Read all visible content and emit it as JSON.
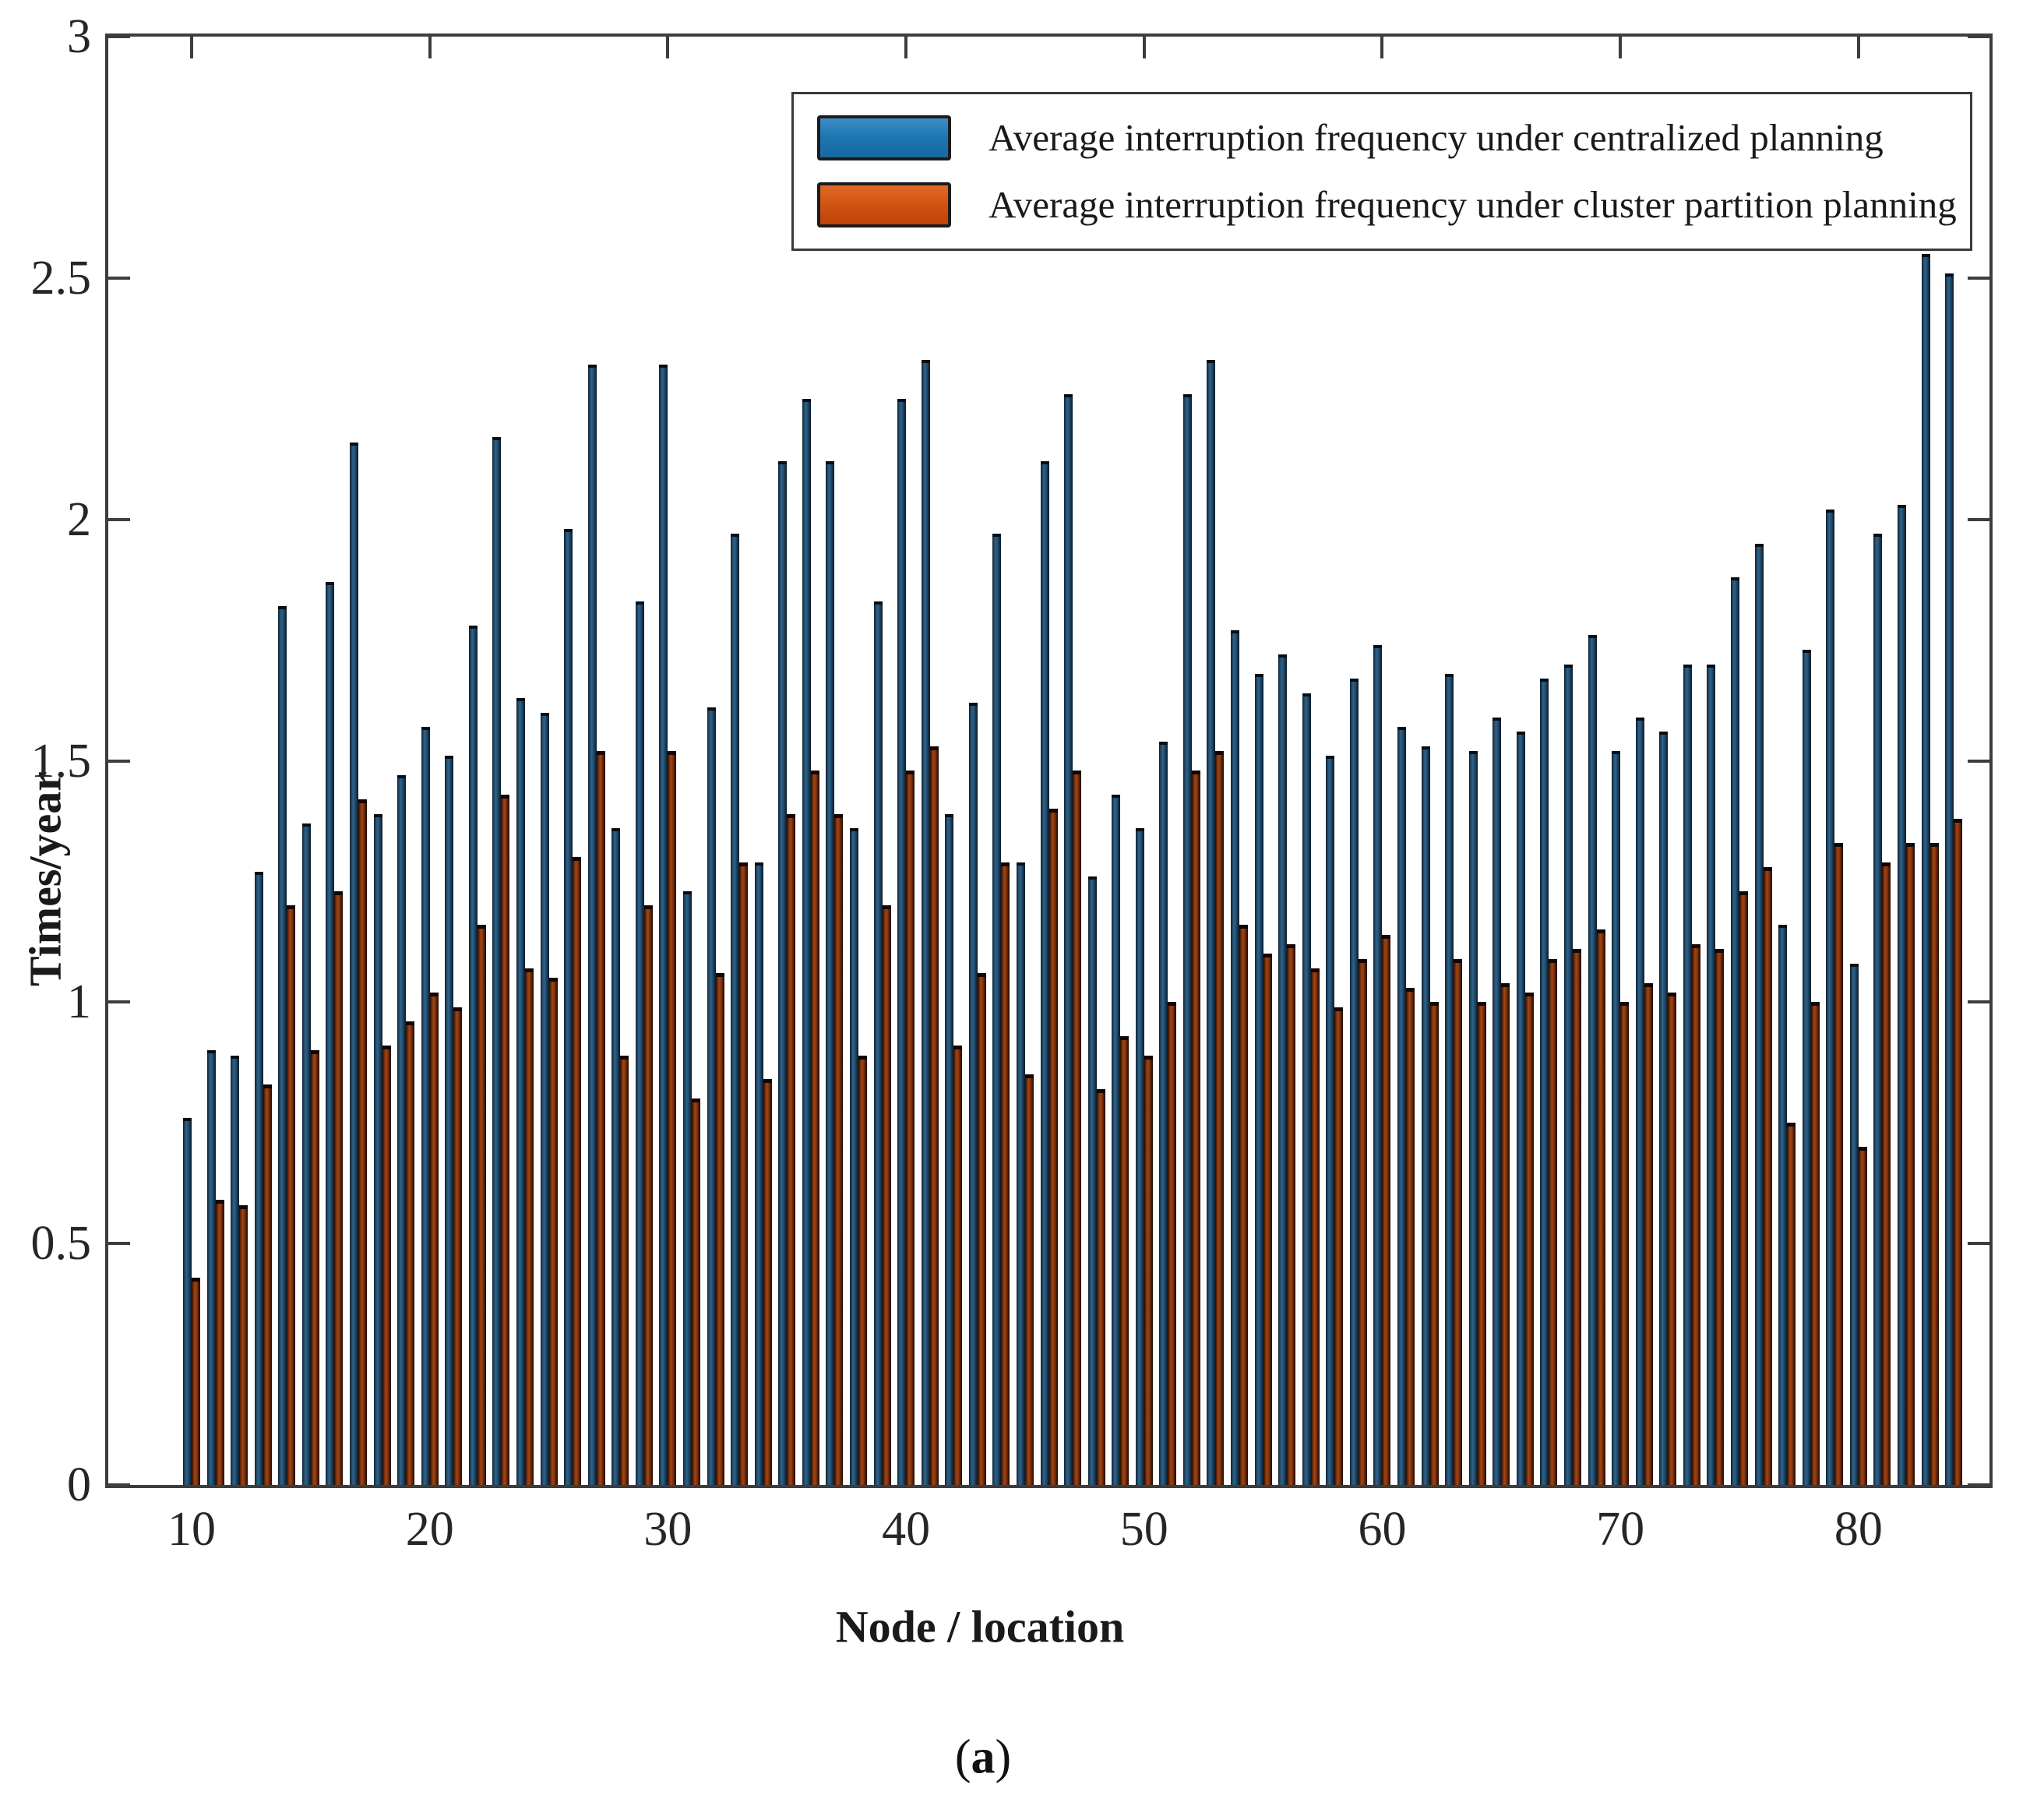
{
  "figure": {
    "ylabel": "Times/year",
    "xlabel": "Node / location",
    "caption": {
      "open": "(",
      "letter": "a",
      "close": ")"
    },
    "background": "#ffffff",
    "axis_color": "#3d3d3d",
    "tick_label_color": "#262626"
  },
  "chart_data": {
    "type": "bar",
    "title": "",
    "xlabel": "Node / location",
    "ylabel": "Times/year",
    "xlim": [
      6.5,
      85.5
    ],
    "ylim": [
      0,
      3
    ],
    "xticks": [
      10,
      20,
      30,
      40,
      50,
      60,
      70,
      80
    ],
    "yticks": [
      0,
      0.5,
      1,
      1.5,
      2,
      2.5,
      3
    ],
    "grid": false,
    "legend_position": "upper center inside",
    "bar_layout": "grouped-pairs",
    "categories": [
      10,
      11,
      12,
      13,
      14,
      15,
      16,
      17,
      18,
      19,
      20,
      21,
      22,
      23,
      24,
      25,
      26,
      27,
      28,
      29,
      30,
      31,
      32,
      33,
      34,
      35,
      36,
      37,
      38,
      39,
      40,
      41,
      42,
      43,
      44,
      45,
      46,
      47,
      48,
      49,
      50,
      51,
      52,
      53,
      54,
      55,
      56,
      57,
      58,
      59,
      60,
      61,
      62,
      63,
      64,
      65,
      66,
      67,
      68,
      69,
      70,
      71,
      72,
      73,
      74,
      75,
      76,
      77,
      78,
      79,
      80,
      81,
      82,
      83,
      84
    ],
    "series": [
      {
        "name": "Average interruption frequency under centralized planning",
        "color": "#1f77b4",
        "values": [
          0.76,
          0.9,
          0.89,
          1.27,
          1.82,
          1.37,
          1.87,
          2.16,
          1.39,
          1.47,
          1.57,
          1.51,
          1.78,
          2.17,
          1.63,
          1.6,
          1.98,
          2.32,
          1.36,
          1.83,
          2.32,
          1.23,
          1.61,
          1.97,
          1.29,
          2.12,
          2.25,
          2.12,
          1.36,
          1.83,
          2.25,
          2.33,
          1.39,
          1.62,
          1.97,
          1.29,
          2.12,
          2.26,
          1.26,
          1.43,
          1.36,
          1.54,
          2.26,
          2.33,
          1.77,
          1.68,
          1.72,
          1.64,
          1.51,
          1.67,
          1.74,
          1.57,
          1.53,
          1.68,
          1.52,
          1.59,
          1.56,
          1.67,
          1.7,
          1.76,
          1.52,
          1.59,
          1.56,
          1.7,
          1.7,
          1.88,
          1.95,
          1.16,
          1.73,
          2.02,
          1.08,
          1.97,
          2.03,
          2.55,
          2.51
        ]
      },
      {
        "name": "Average interruption frequency under cluster partition planning",
        "color": "#d35413",
        "values": [
          0.43,
          0.59,
          0.58,
          0.83,
          1.2,
          0.9,
          1.23,
          1.42,
          0.91,
          0.96,
          1.02,
          0.99,
          1.16,
          1.43,
          1.07,
          1.05,
          1.3,
          1.52,
          0.89,
          1.2,
          1.52,
          0.8,
          1.06,
          1.29,
          0.84,
          1.39,
          1.48,
          1.39,
          0.89,
          1.2,
          1.48,
          1.53,
          0.91,
          1.06,
          1.29,
          0.85,
          1.4,
          1.48,
          0.82,
          0.93,
          0.89,
          1.0,
          1.48,
          1.52,
          1.16,
          1.1,
          1.12,
          1.07,
          0.99,
          1.09,
          1.14,
          1.03,
          1.0,
          1.09,
          1.0,
          1.04,
          1.02,
          1.09,
          1.11,
          1.15,
          1.0,
          1.04,
          1.02,
          1.12,
          1.11,
          1.23,
          1.28,
          0.75,
          1.0,
          1.33,
          0.7,
          1.29,
          1.33,
          1.33,
          1.38
        ]
      }
    ]
  }
}
